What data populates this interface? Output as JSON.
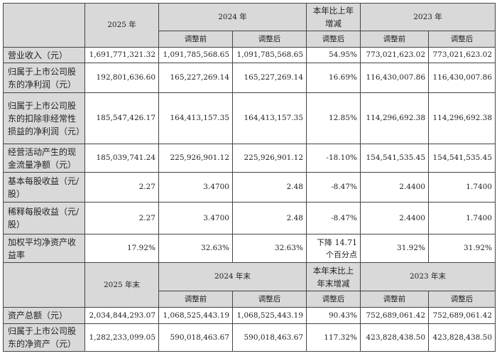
{
  "header1": {
    "y2025": "2025 年",
    "y2024": "2024 年",
    "change": "本年比上年增减",
    "y2023": "2023 年",
    "before": "调整前",
    "after": "调整后"
  },
  "rows1": [
    {
      "label": "营业收入（元）",
      "v": [
        "1,691,771,321.32",
        "1,091,785,568.65",
        "1,091,785,568.65",
        "54.95%",
        "773,021,623.02",
        "773,021,623.02"
      ]
    },
    {
      "label": "归属于上市公司股东的净利润（元）",
      "v": [
        "192,801,636.60",
        "165,227,269.14",
        "165,227,269.14",
        "16.69%",
        "116,430,007.86",
        "116,430,007.86"
      ]
    },
    {
      "label": "归属于上市公司股东的扣除非经常性损益的净利润（元）",
      "v": [
        "185,547,426.17",
        "164,413,157.35",
        "164,413,157.35",
        "12.85%",
        "114,296,692.38",
        "114,296,692.38"
      ]
    },
    {
      "label": "经营活动产生的现金流量净额（元）",
      "v": [
        "185,039,741.24",
        "225,926,901.12",
        "225,926,901.12",
        "-18.10%",
        "154,541,535.45",
        "154,541,535.45"
      ]
    },
    {
      "label": "基本每股收益（元/股）",
      "v": [
        "2.27",
        "3.4700",
        "2.48",
        "-8.47%",
        "2.4400",
        "1.7400"
      ]
    },
    {
      "label": "稀释每股收益（元/股）",
      "v": [
        "2.27",
        "3.4700",
        "2.48",
        "-8.47%",
        "2.4400",
        "1.7400"
      ]
    },
    {
      "label": "加权平均净资产收益率",
      "v": [
        "17.92%",
        "32.63%",
        "32.63%",
        "下降 14.71 个百分点",
        "31.92%",
        "31.92%"
      ]
    }
  ],
  "header2": {
    "y2025": "2025 年末",
    "y2024": "2024 年末",
    "change": "本年末比上年末增减",
    "y2023": "2023 年末",
    "before": "调整前",
    "after": "调整后"
  },
  "rows2": [
    {
      "label": "资产总额（元）",
      "v": [
        "2,034,844,293.07",
        "1,068,525,443.19",
        "1,068,525,443.19",
        "90.43%",
        "752,689,061.42",
        "752,689,061.42"
      ]
    },
    {
      "label": "归属于上市公司股东的净资产（元）",
      "v": [
        "1,282,233,099.05",
        "590,018,463.67",
        "590,018,463.67",
        "117.32%",
        "423,828,438.50",
        "423,828,438.50"
      ]
    }
  ]
}
